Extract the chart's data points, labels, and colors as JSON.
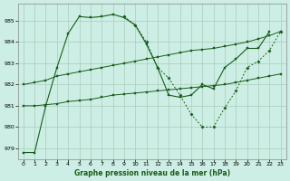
{
  "title": "Graphe pression niveau de la mer (hPa)",
  "background_color": "#cceee4",
  "grid_color": "#aaccbb",
  "line_color": "#1a5c1a",
  "xlim": [
    -0.5,
    23.5
  ],
  "ylim": [
    978.5,
    985.8
  ],
  "yticks": [
    979,
    980,
    981,
    982,
    983,
    984,
    985
  ],
  "series": {
    "line1_x": [
      0,
      1,
      2,
      3,
      4,
      5,
      6,
      7,
      8,
      9,
      10,
      11,
      12,
      13,
      14,
      15,
      16,
      17,
      18,
      19,
      20,
      21,
      22
    ],
    "line1_y": [
      978.8,
      978.8,
      981.0,
      982.8,
      984.4,
      985.2,
      985.15,
      985.2,
      985.3,
      985.15,
      984.8,
      983.9,
      982.8,
      981.5,
      981.4,
      981.5,
      982.0,
      981.8,
      982.8,
      983.2,
      983.7,
      983.7,
      984.5
    ],
    "line2_x": [
      9,
      10,
      11,
      12,
      13,
      14,
      15,
      16,
      17,
      18,
      19,
      20,
      21,
      22,
      23
    ],
    "line2_y": [
      985.2,
      984.8,
      984.0,
      982.8,
      982.3,
      981.5,
      980.6,
      980.0,
      980.0,
      980.9,
      981.7,
      982.8,
      983.1,
      983.6,
      984.5
    ],
    "line3_x": [
      0,
      1,
      2,
      3,
      4,
      5,
      6,
      7,
      8,
      9,
      10,
      11,
      12,
      13,
      14,
      15,
      16,
      17,
      18,
      19,
      20,
      21,
      22,
      23
    ],
    "line3_y": [
      982.0,
      982.1,
      982.2,
      982.4,
      982.5,
      982.6,
      982.7,
      982.8,
      982.9,
      983.0,
      983.1,
      983.2,
      983.3,
      983.4,
      983.5,
      983.6,
      983.65,
      983.7,
      983.8,
      983.9,
      984.0,
      984.15,
      984.3,
      984.5
    ],
    "line4_x": [
      0,
      1,
      2,
      3,
      4,
      5,
      6,
      7,
      8,
      9,
      10,
      11,
      12,
      13,
      14,
      15,
      16,
      17,
      18,
      19,
      20,
      21,
      22,
      23
    ],
    "line4_y": [
      981.0,
      981.0,
      981.05,
      981.1,
      981.2,
      981.25,
      981.3,
      981.4,
      981.5,
      981.55,
      981.6,
      981.65,
      981.7,
      981.75,
      981.8,
      981.85,
      981.9,
      981.95,
      982.0,
      982.1,
      982.2,
      982.3,
      982.4,
      982.5
    ]
  }
}
